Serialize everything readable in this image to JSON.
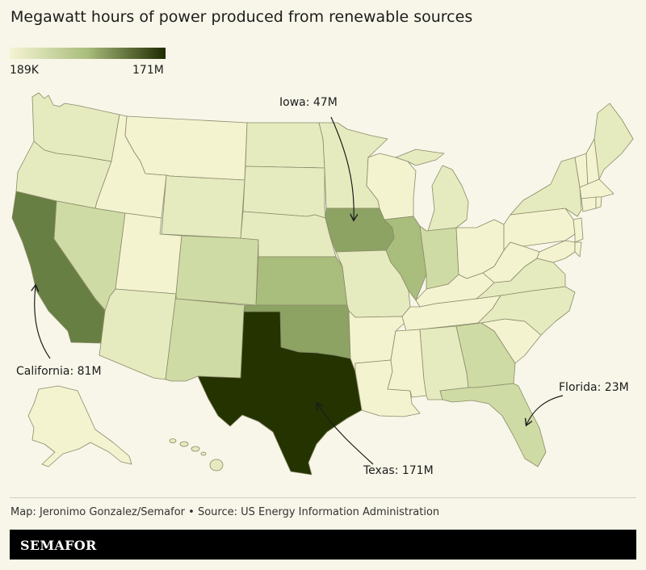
{
  "header": {
    "title": "Megawatt hours of power produced from renewable sources"
  },
  "legend": {
    "min_label": "189K",
    "max_label": "171M",
    "color_low": "#f5f4d2",
    "color_high": "#1f2b00"
  },
  "annotations": {
    "iowa": "Iowa: 47M",
    "california": "California: 81M",
    "florida": "Florida: 23M",
    "texas": "Texas: 171M"
  },
  "palette": {
    "very_light": "#f4f3d0",
    "light": "#e6ebbf",
    "medium_light": "#cfdba4",
    "medium": "#a9bd7c",
    "medium_dark": "#8ca364",
    "dark": "#687f43",
    "darkest": "#243300",
    "border": "#8a8a6a",
    "background": "#f7f6e8"
  },
  "footer": {
    "credit": "Map: Jeronimo Gonzalez/Semafor • Source: US Energy Information Administration",
    "brand": "SEMAFOR"
  }
}
